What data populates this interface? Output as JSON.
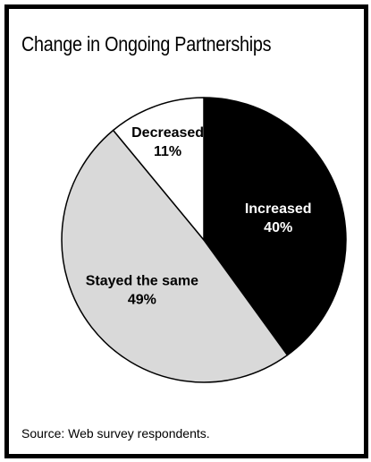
{
  "chart_data": {
    "type": "pie",
    "title": "Change in Ongoing Partnerships",
    "slices": [
      {
        "label": "Increased",
        "value": 40,
        "value_label": "40%",
        "color": "#000000",
        "text_color": "#ffffff"
      },
      {
        "label": "Stayed the same",
        "value": 49,
        "value_label": "49%",
        "color": "#d9d9d9",
        "text_color": "#000000"
      },
      {
        "label": "Decreased",
        "value": 11,
        "value_label": "11%",
        "color": "#ffffff",
        "text_color": "#000000"
      }
    ],
    "legend": "none"
  },
  "source": "Source: Web survey respondents."
}
